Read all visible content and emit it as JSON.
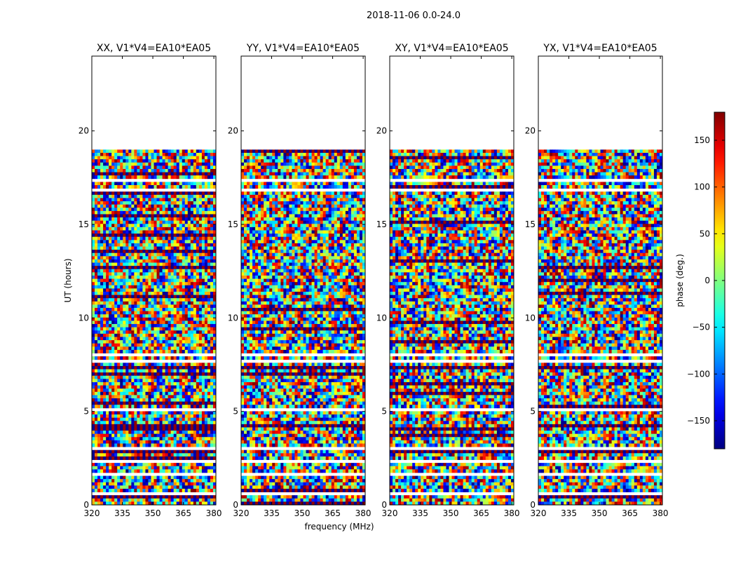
{
  "figure": {
    "suptitle": "2018-11-06 0.0-24.0"
  },
  "chart_data": {
    "type": "heatmap",
    "title": "2018-11-06 0.0-24.0",
    "xlabel": "frequency (MHz)",
    "ylabel": "UT (hours)",
    "xlim": [
      320,
      381
    ],
    "ylim": [
      0,
      24
    ],
    "x_ticks": [
      320,
      335,
      350,
      365,
      380
    ],
    "y_ticks": [
      0,
      5,
      10,
      15,
      20
    ],
    "data_extent_hours": [
      0,
      19
    ],
    "panels": [
      {
        "title": "XX, V1*V4=EA10*EA05",
        "polarization": "XX"
      },
      {
        "title": "YY, V1*V4=EA10*EA05",
        "polarization": "YY"
      },
      {
        "title": "XY, V1*V4=EA10*EA05",
        "polarization": "XY"
      },
      {
        "title": "YX, V1*V4=EA10*EA05",
        "polarization": "YX"
      }
    ],
    "colorbar": {
      "label": "phase (deg.)",
      "range": [
        -180,
        180
      ],
      "ticks": [
        -150,
        -100,
        -50,
        0,
        50,
        100,
        150
      ],
      "tick_labels": [
        "−150",
        "−100",
        "−50",
        "0",
        "50",
        "100",
        "150"
      ],
      "colormap": "jet"
    },
    "flagged_hours": [
      [
        0.55,
        0.65
      ],
      [
        1.05,
        1.12
      ],
      [
        1.6,
        1.75
      ],
      [
        2.25,
        2.35
      ],
      [
        2.55,
        2.62
      ],
      [
        3.0,
        3.1
      ],
      [
        5.05,
        5.12
      ],
      [
        7.6,
        7.7
      ],
      [
        7.95,
        8.05
      ],
      [
        8.25,
        8.35
      ],
      [
        11.55,
        11.62
      ],
      [
        12.4,
        12.5
      ],
      [
        14.3,
        14.4
      ],
      [
        15.2,
        15.28
      ],
      [
        16.8,
        16.88
      ],
      [
        17.3,
        17.38
      ],
      [
        18.4,
        18.48
      ]
    ]
  }
}
